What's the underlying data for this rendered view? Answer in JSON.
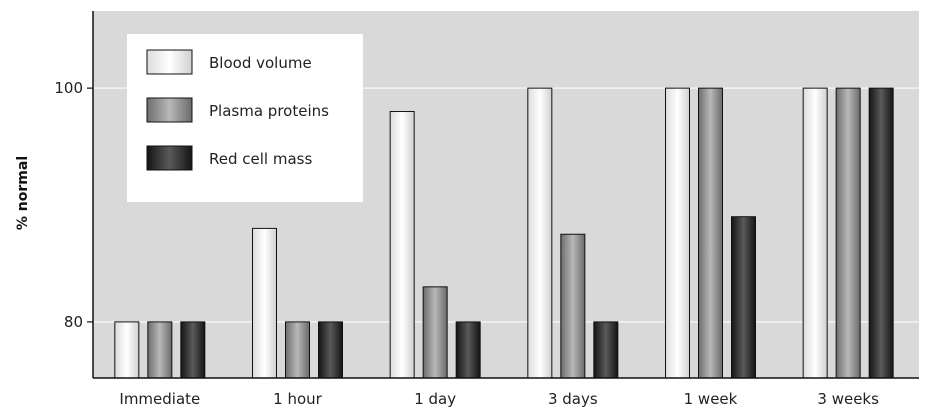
{
  "chart_data": {
    "type": "bar",
    "categories": [
      "Immediate",
      "1 hour",
      "1 day",
      "3 days",
      "1 week",
      "3 weeks"
    ],
    "series": [
      {
        "name": "Blood volume",
        "values": [
          80,
          88,
          98,
          100,
          100,
          100
        ]
      },
      {
        "name": "Plasma proteins",
        "values": [
          80,
          80,
          83,
          87.5,
          100,
          100
        ]
      },
      {
        "name": "Red cell mass",
        "values": [
          80,
          80,
          80,
          80,
          89,
          100
        ]
      }
    ],
    "ylabel": "% normal",
    "xlabel": "",
    "yticks": [
      "80",
      "100"
    ],
    "ylim": [
      75.2,
      106.6
    ],
    "grid": true,
    "legend_position": "top-left",
    "colors": {
      "plot_background": "#d9d9d9",
      "gridline": "#f4f4f4",
      "blood_volume": "#f2f2f2",
      "plasma_proteins": "#9a9a9a",
      "red_cell_mass": "#2e2e2e"
    }
  }
}
